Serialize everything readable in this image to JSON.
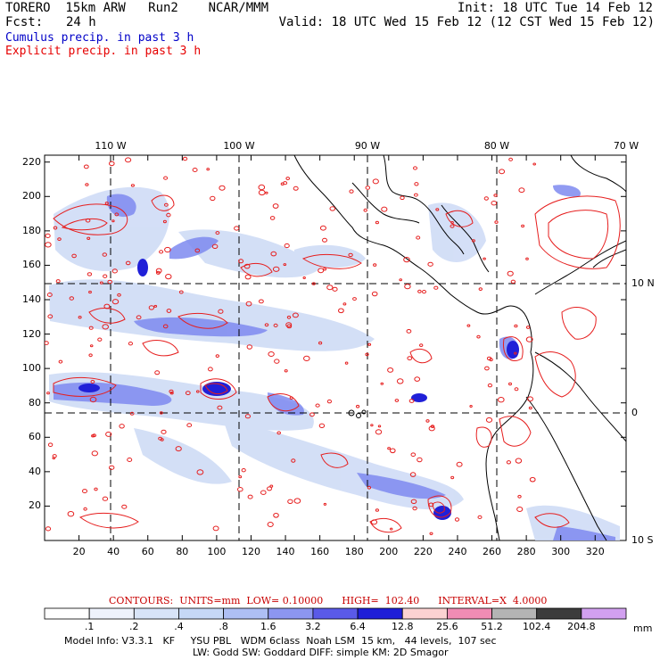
{
  "header": {
    "model": "TORERO  15km ARW   Run2    NCAR/MMM",
    "init": "Init: 18 UTC Tue 14 Feb 12",
    "fcst_label": "Fcst:",
    "fcst_value": "24 h",
    "valid": "Valid: 18 UTC Wed 15 Feb 12 (12 CST Wed 15 Feb 12)",
    "field1": "Cumulus precip. in past 3 h",
    "field2": "Explicit precip. in past 3 h"
  },
  "map": {
    "top_lon_labels": [
      "110 W",
      "100 W",
      "90 W",
      "80 W",
      "70 W"
    ],
    "right_lat_labels": [
      "10 N",
      "0",
      "10 S"
    ],
    "left_y_ticks": [
      "220",
      "200",
      "180",
      "160",
      "140",
      "120",
      "100",
      "80",
      "60",
      "40",
      "20"
    ],
    "bottom_x_ticks": [
      "20",
      "40",
      "60",
      "80",
      "100",
      "120",
      "140",
      "160",
      "180",
      "200",
      "220",
      "240",
      "260",
      "280",
      "300",
      "320"
    ],
    "colors": {
      "contour": "#e61e1e",
      "border": "#000000",
      "light_blue": "#c8d6f5",
      "mid_blue": "#6f7ef0",
      "dark_blue": "#1e1ed8"
    }
  },
  "contours": {
    "label": "CONTOURS:  UNITS=mm  LOW= 0.10000      HIGH=  102.40      INTERVAL=X  4.0000"
  },
  "colorbar": {
    "labels": [
      ".1",
      ".2",
      ".4",
      ".8",
      "1.6",
      "3.2",
      "6.4",
      "12.8",
      "25.6",
      "51.2",
      "102.4",
      "204.8"
    ],
    "unit": "mm",
    "colors": [
      "#ffffff",
      "#eef2fc",
      "#d8e4f8",
      "#c6d8f6",
      "#aebff4",
      "#8c96f0",
      "#5a5ae8",
      "#1e1ed8",
      "#fcd2d2",
      "#f08cb4",
      "#b4b4b4",
      "#3c3c3c",
      "#d2a0f0"
    ]
  },
  "footer": {
    "line1": "Model Info: V3.3.1   KF     YSU PBL   WDM 6class  Noah LSM  15 km,   44 levels,  107 sec",
    "line2": "LW: Godd SW: Goddard DIFF: simple KM: 2D Smagor"
  }
}
